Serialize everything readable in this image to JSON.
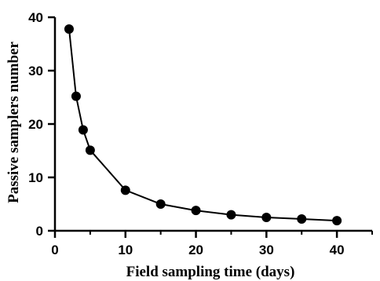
{
  "chart_data": {
    "type": "line",
    "xlabel": "Field sampling time (days)",
    "ylabel": "Passive samplers number",
    "xlim": [
      0,
      45
    ],
    "ylim": [
      0,
      40
    ],
    "xticks": [
      "0",
      "10",
      "20",
      "30",
      "40"
    ],
    "yticks": [
      "0",
      "10",
      "20",
      "30",
      "40"
    ],
    "grid": false,
    "series": [
      {
        "x": [
          2,
          3,
          4,
          5,
          10,
          15,
          20,
          25,
          30,
          35,
          40
        ],
        "y": [
          37.8,
          25.2,
          18.9,
          15.1,
          7.6,
          5.0,
          3.8,
          3.0,
          2.5,
          2.2,
          1.9
        ],
        "marker": "circle",
        "color": "#000000"
      }
    ]
  }
}
